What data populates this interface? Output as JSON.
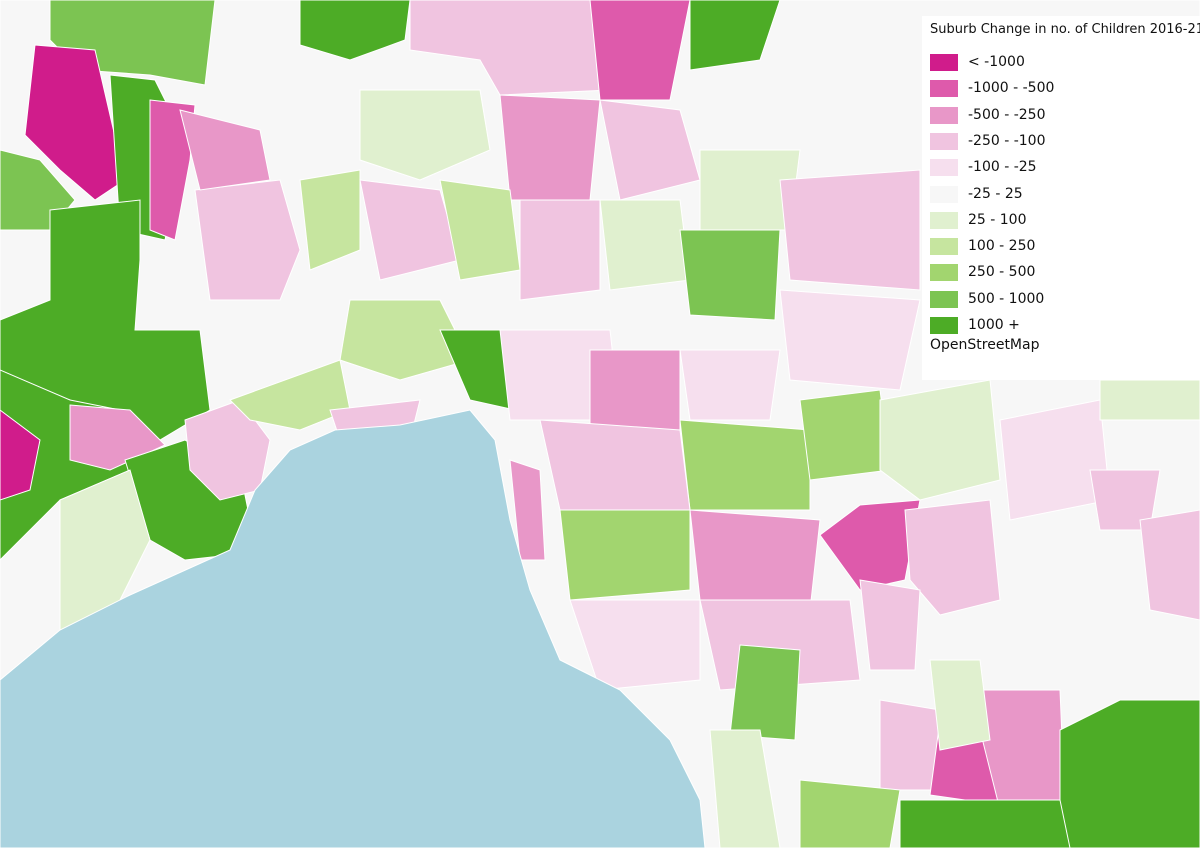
{
  "legend": {
    "title": "Suburb Change in no. of Children 2016-21",
    "items": [
      {
        "label": "< -1000",
        "color": "#d01c8b"
      },
      {
        "label": "-1000 - -500",
        "color": "#de5aab"
      },
      {
        "label": "-500 - -250",
        "color": "#e897c8"
      },
      {
        "label": "-250 - -100",
        "color": "#f0c4e0"
      },
      {
        "label": "-100 - -25",
        "color": "#f6dfee"
      },
      {
        "label": "-25 - 25",
        "color": "#f7f7f7"
      },
      {
        "label": "25 - 100",
        "color": "#e0f0cf"
      },
      {
        "label": "100 - 250",
        "color": "#c6e59f"
      },
      {
        "label": "250 - 500",
        "color": "#a2d56f"
      },
      {
        "label": "500 - 1000",
        "color": "#7cc452"
      },
      {
        "label": "1000 +",
        "color": "#4dac26"
      }
    ],
    "source": "OpenStreetMap"
  }
}
